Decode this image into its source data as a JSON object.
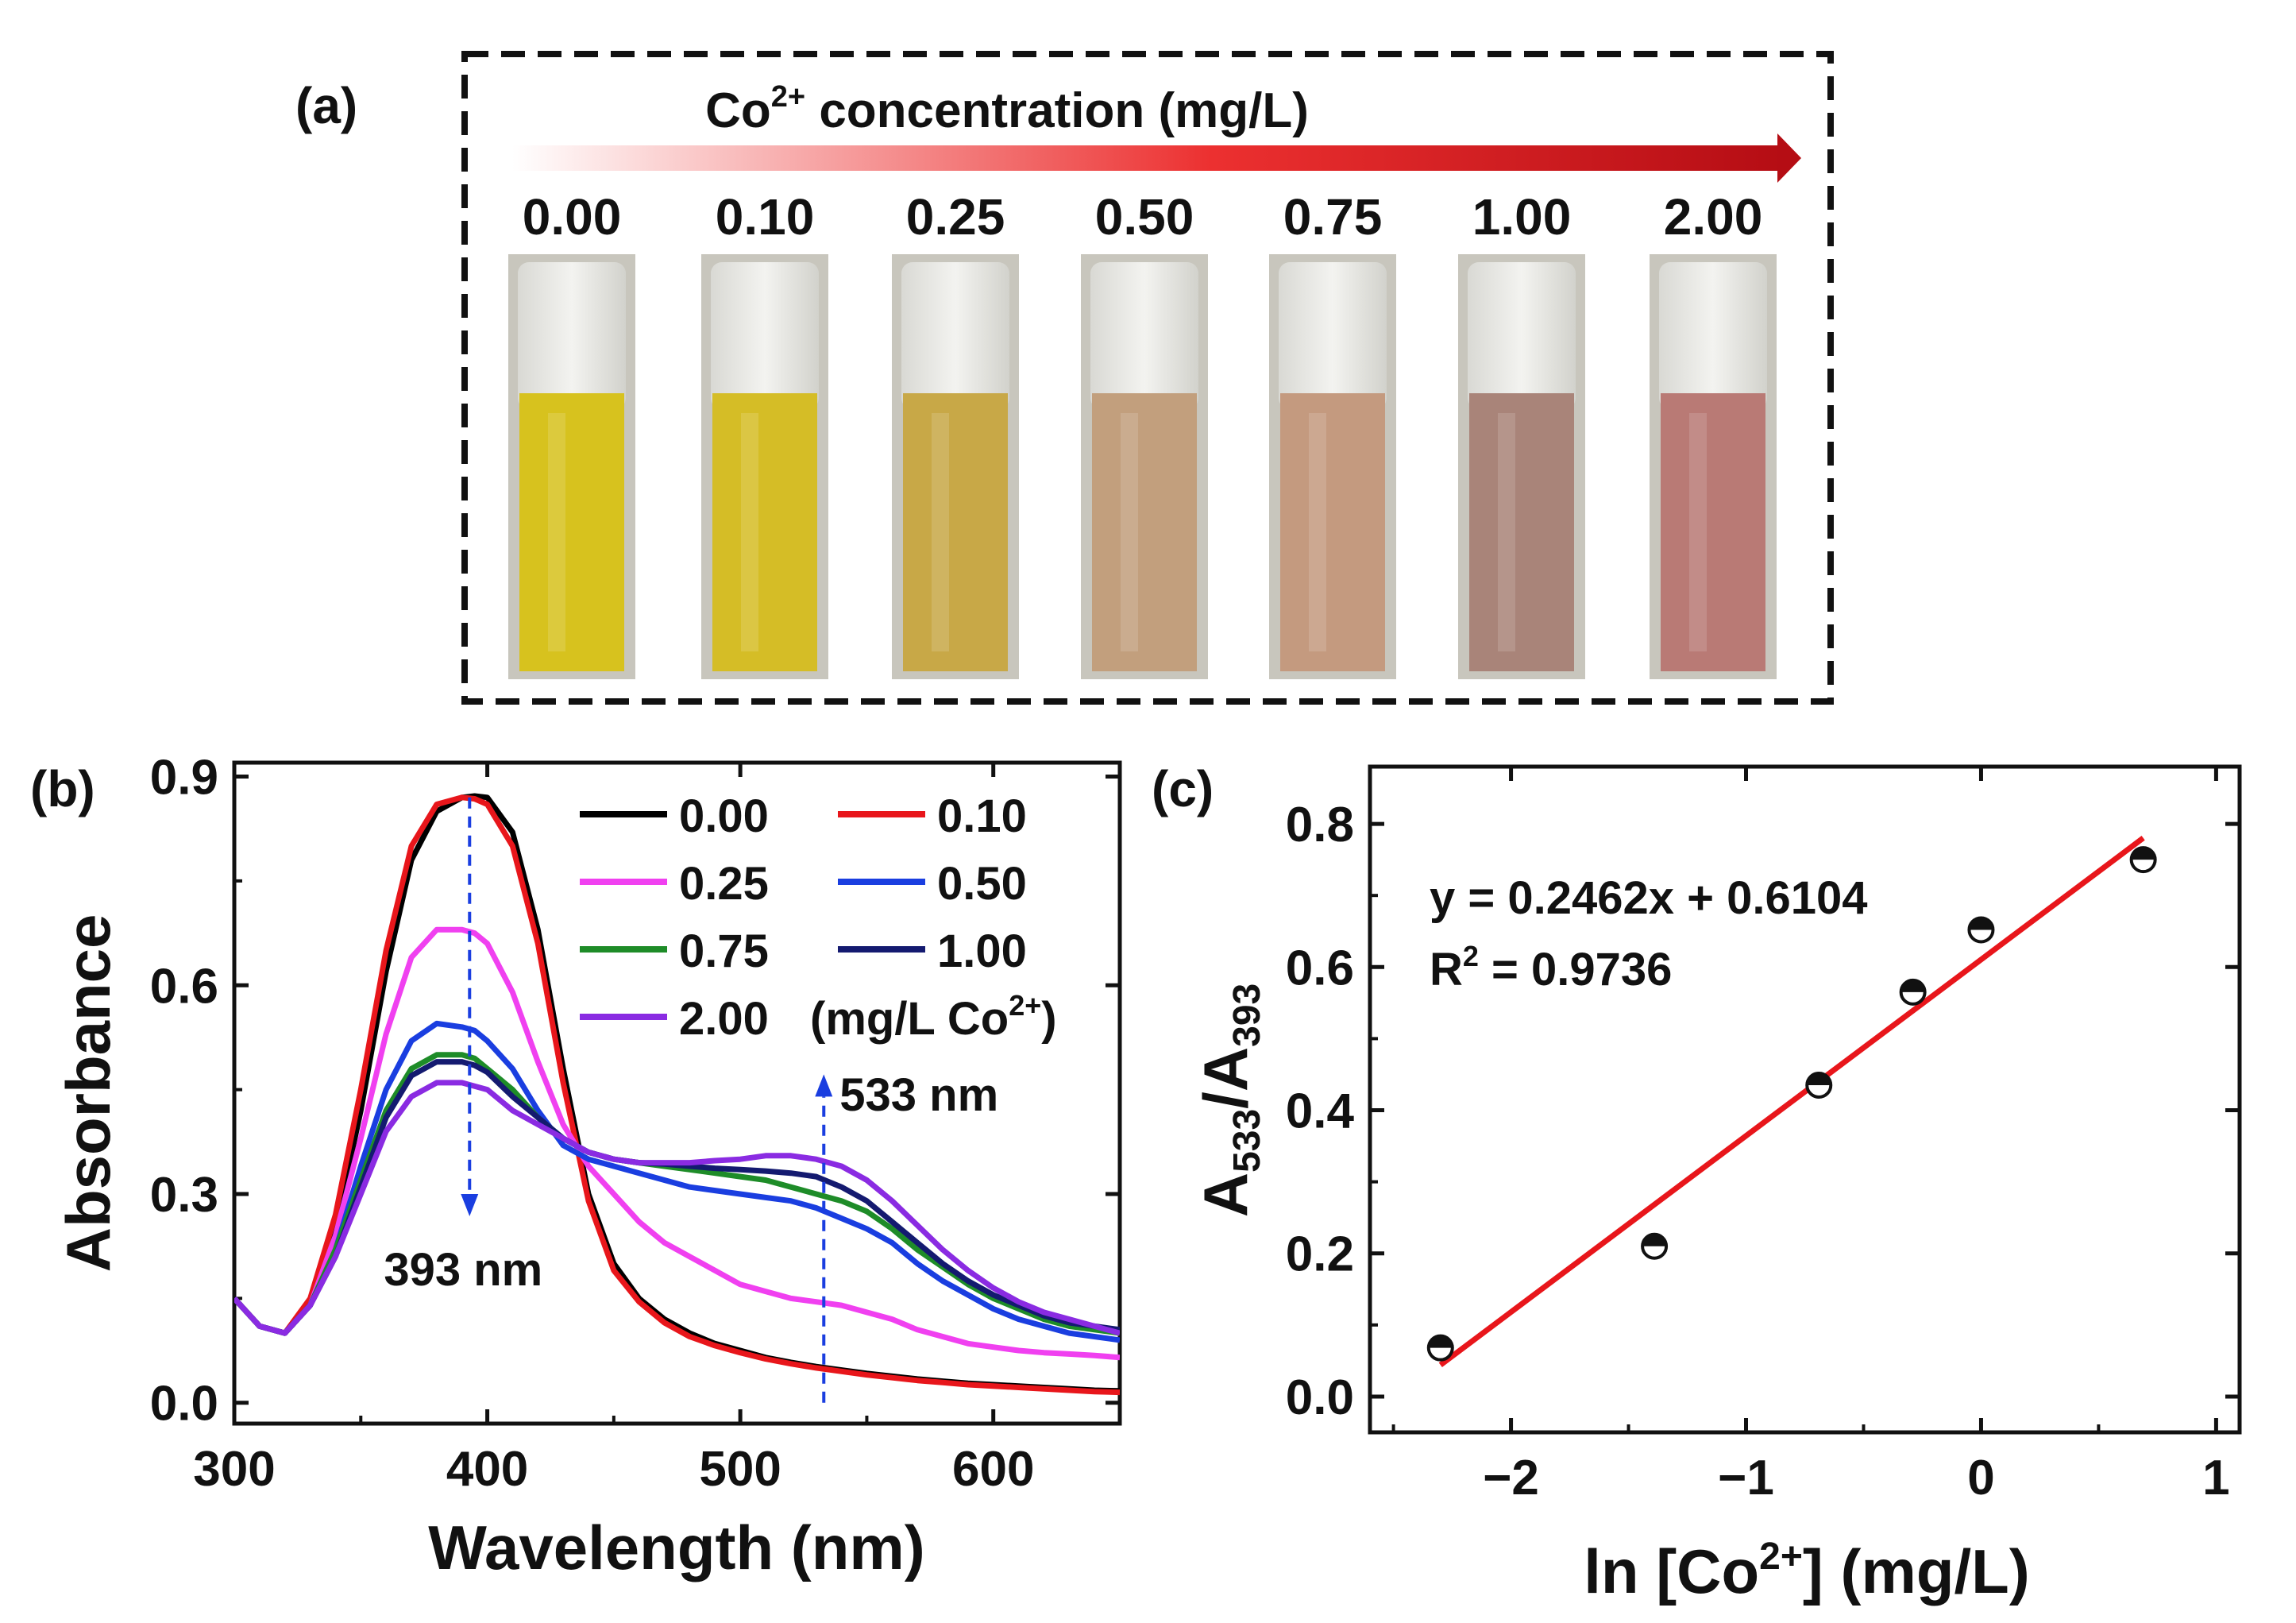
{
  "panel_a": {
    "label": "(a)",
    "title_prefix": "Co",
    "title_sup": "2+",
    "title_suffix": " concentration (mg/L)",
    "samples": [
      {
        "conc": "0.00",
        "color": "#d7c21e"
      },
      {
        "conc": "0.10",
        "color": "#d5bd26"
      },
      {
        "conc": "0.25",
        "color": "#c8a847"
      },
      {
        "conc": "0.50",
        "color": "#c29f7d"
      },
      {
        "conc": "0.75",
        "color": "#c49a7f"
      },
      {
        "conc": "1.00",
        "color": "#a98479"
      },
      {
        "conc": "2.00",
        "color": "#b97a75"
      }
    ],
    "arrow_color": "#c8101c"
  },
  "panel_b": {
    "label": "(b)"
  },
  "panel_c": {
    "label": "(c)"
  },
  "chart_data": [
    {
      "type": "line",
      "xlabel": "Wavelength (nm)",
      "ylabel": "Absorbance",
      "xlim": [
        300,
        650
      ],
      "ylim": [
        -0.03,
        0.92
      ],
      "xticks": [
        "300",
        "400",
        "500",
        "600"
      ],
      "yticks": [
        "0.0",
        "0.3",
        "0.6",
        "0.9"
      ],
      "legend_placement": "top-right",
      "legend_unit_prefix": " (mg/L Co",
      "legend_unit_sup": "2+",
      "legend_unit_suffix": ")",
      "x": [
        300,
        310,
        320,
        330,
        340,
        350,
        360,
        370,
        380,
        390,
        395,
        400,
        410,
        420,
        430,
        440,
        450,
        460,
        470,
        480,
        490,
        500,
        510,
        520,
        530,
        540,
        550,
        560,
        570,
        580,
        590,
        600,
        610,
        620,
        630,
        640,
        650
      ],
      "series": [
        {
          "name": "0.00",
          "color": "#000000",
          "values": [
            0.15,
            0.11,
            0.1,
            0.14,
            0.25,
            0.42,
            0.62,
            0.78,
            0.85,
            0.87,
            0.872,
            0.87,
            0.82,
            0.68,
            0.48,
            0.3,
            0.2,
            0.15,
            0.12,
            0.1,
            0.085,
            0.075,
            0.065,
            0.058,
            0.052,
            0.047,
            0.042,
            0.038,
            0.034,
            0.031,
            0.028,
            0.026,
            0.024,
            0.022,
            0.02,
            0.018,
            0.017
          ]
        },
        {
          "name": "0.10",
          "color": "#e8161b",
          "values": [
            0.15,
            0.11,
            0.1,
            0.15,
            0.27,
            0.45,
            0.65,
            0.8,
            0.86,
            0.87,
            0.868,
            0.86,
            0.8,
            0.66,
            0.46,
            0.29,
            0.19,
            0.145,
            0.115,
            0.095,
            0.082,
            0.072,
            0.063,
            0.056,
            0.05,
            0.045,
            0.04,
            0.036,
            0.032,
            0.029,
            0.026,
            0.024,
            0.022,
            0.02,
            0.018,
            0.016,
            0.015
          ]
        },
        {
          "name": "0.25",
          "color": "#f040f0",
          "values": [
            0.15,
            0.11,
            0.1,
            0.14,
            0.24,
            0.38,
            0.53,
            0.64,
            0.68,
            0.68,
            0.675,
            0.66,
            0.59,
            0.49,
            0.4,
            0.34,
            0.3,
            0.26,
            0.23,
            0.21,
            0.19,
            0.17,
            0.16,
            0.15,
            0.145,
            0.14,
            0.13,
            0.12,
            0.105,
            0.095,
            0.085,
            0.08,
            0.075,
            0.072,
            0.07,
            0.068,
            0.065
          ]
        },
        {
          "name": "0.50",
          "color": "#1a3ee0",
          "values": [
            0.15,
            0.11,
            0.1,
            0.14,
            0.22,
            0.34,
            0.45,
            0.52,
            0.545,
            0.54,
            0.535,
            0.52,
            0.48,
            0.42,
            0.37,
            0.35,
            0.34,
            0.33,
            0.32,
            0.31,
            0.305,
            0.3,
            0.295,
            0.29,
            0.28,
            0.265,
            0.25,
            0.23,
            0.2,
            0.175,
            0.155,
            0.135,
            0.12,
            0.11,
            0.1,
            0.095,
            0.09
          ]
        },
        {
          "name": "0.75",
          "color": "#1e8c28",
          "values": [
            0.15,
            0.11,
            0.1,
            0.14,
            0.22,
            0.32,
            0.42,
            0.48,
            0.5,
            0.5,
            0.495,
            0.48,
            0.45,
            0.41,
            0.38,
            0.36,
            0.35,
            0.345,
            0.34,
            0.335,
            0.33,
            0.325,
            0.32,
            0.31,
            0.3,
            0.29,
            0.275,
            0.25,
            0.22,
            0.195,
            0.17,
            0.15,
            0.135,
            0.12,
            0.11,
            0.105,
            0.1
          ]
        },
        {
          "name": "1.00",
          "color": "#141a70",
          "values": [
            0.15,
            0.11,
            0.1,
            0.14,
            0.21,
            0.31,
            0.41,
            0.47,
            0.49,
            0.49,
            0.485,
            0.475,
            0.44,
            0.41,
            0.38,
            0.36,
            0.35,
            0.345,
            0.343,
            0.34,
            0.337,
            0.335,
            0.333,
            0.33,
            0.325,
            0.31,
            0.29,
            0.26,
            0.23,
            0.2,
            0.175,
            0.155,
            0.14,
            0.125,
            0.115,
            0.11,
            0.105
          ]
        },
        {
          "name": "2.00",
          "color": "#8a2be2",
          "values": [
            0.15,
            0.11,
            0.1,
            0.14,
            0.21,
            0.3,
            0.39,
            0.44,
            0.46,
            0.46,
            0.455,
            0.45,
            0.42,
            0.4,
            0.38,
            0.36,
            0.35,
            0.345,
            0.345,
            0.345,
            0.348,
            0.35,
            0.355,
            0.355,
            0.35,
            0.34,
            0.32,
            0.29,
            0.255,
            0.22,
            0.19,
            0.165,
            0.145,
            0.13,
            0.12,
            0.11,
            0.1
          ]
        }
      ],
      "annotations": [
        {
          "text": "393 nm",
          "color": "#1a3ee0",
          "arrow": "down",
          "x": 393
        },
        {
          "text": "533 nm",
          "color": "#1a3ee0",
          "arrow": "up",
          "x": 533
        }
      ]
    },
    {
      "type": "scatter",
      "xlabel_prefix": "ln [Co",
      "xlabel_sup": "2+",
      "xlabel_suffix": "] (mg/L)",
      "ylabel_A": "A",
      "ylabel_sub1": "533",
      "ylabel_slash": "/A",
      "ylabel_sub2": "393",
      "xlim": [
        -2.6,
        1.1
      ],
      "ylim": [
        -0.05,
        0.88
      ],
      "xticks": [
        "−2",
        "−1",
        "0",
        "1"
      ],
      "yticks": [
        "0.0",
        "0.2",
        "0.4",
        "0.6",
        "0.8"
      ],
      "points": [
        {
          "x": -2.3,
          "y": 0.068
        },
        {
          "x": -1.39,
          "y": 0.21
        },
        {
          "x": -0.69,
          "y": 0.435
        },
        {
          "x": -0.29,
          "y": 0.565
        },
        {
          "x": 0.0,
          "y": 0.652
        },
        {
          "x": 0.69,
          "y": 0.75
        }
      ],
      "fit": {
        "slope": 0.2462,
        "intercept": 0.6104,
        "x_range": [
          -2.3,
          0.69
        ],
        "color": "#e8161b"
      },
      "equation": "y = 0.2462x + 0.6104",
      "r2_prefix": "R",
      "r2_sup": "2",
      "r2_suffix": " = 0.9736"
    }
  ]
}
